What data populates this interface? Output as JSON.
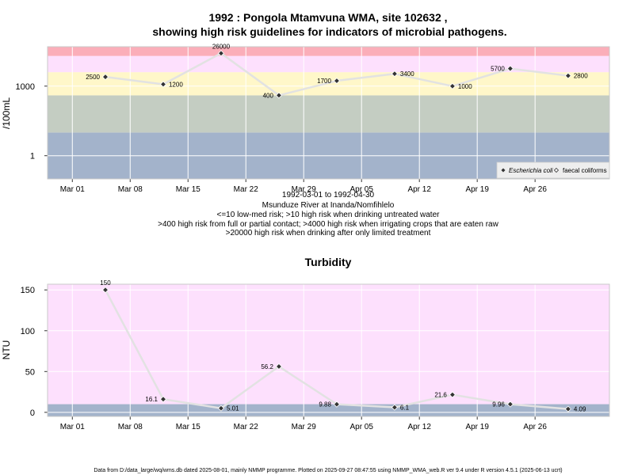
{
  "title_line1": "1992 : Pongola Mtamvuna WMA, site 102632 ,",
  "title_line2": "showing high risk guidelines for indicators of microbial pathogens.",
  "subtitle_lines": [
    "1992-03-01 to 1992-04-30",
    "Msunduze River at Inanda/Nomfihlelo",
    "<=10 low-med risk; >10 high risk when drinking untreated water",
    ">400 high risk from full or partial contact; >4000 high risk when irrigating crops that are eaten raw",
    ">20000 high risk when drinking after only limited treatment"
  ],
  "footer": "Data from D:/data_large/wq/wms.db dated 2025-08-01, mainly NMMP programme. Plotted on 2025-09-27 08:47:55 using NMMP_WMA_web.R ver 9.4 under R version 4.5.1 (2025-06-13 ucrt)",
  "colors": {
    "band_blue": "#a3b3cb",
    "band_grey": "#c4cdc2",
    "band_yellow": "#fff7c9",
    "band_pink": "#fde0fd",
    "band_red": "#fbaeb9",
    "line": "#e2e2e2",
    "marker": "#333333",
    "grid": "#ffffff"
  },
  "chart_data": [
    {
      "type": "line",
      "title": "",
      "ylabel": "/100mL",
      "yscale": "log10",
      "ylim": [
        0.1,
        50000
      ],
      "yticks": [
        1,
        1000
      ],
      "ytick_labels": [
        "1",
        "1000"
      ],
      "xlim": [
        "1992-02-27",
        "1992-05-05"
      ],
      "xticks": [
        "1992-03-01",
        "1992-03-08",
        "1992-03-15",
        "1992-03-22",
        "1992-03-29",
        "1992-04-05",
        "1992-04-12",
        "1992-04-19",
        "1992-04-26"
      ],
      "xtick_labels": [
        "Mar 01",
        "Mar 08",
        "Mar 15",
        "Mar 22",
        "Mar 29",
        "Apr 05",
        "Apr 12",
        "Apr 19",
        "Apr 26"
      ],
      "bands": [
        {
          "from": 0.1,
          "to": 10,
          "color": "#a3b3cb"
        },
        {
          "from": 10,
          "to": 400,
          "color": "#c4cdc2"
        },
        {
          "from": 400,
          "to": 4000,
          "color": "#fff7c9"
        },
        {
          "from": 4000,
          "to": 20000,
          "color": "#fde0fd"
        },
        {
          "from": 20000,
          "to": 50000,
          "color": "#fbaeb9"
        }
      ],
      "legend": {
        "position": "bottom-right",
        "entries": [
          {
            "label": "Escherichia coli",
            "marker": "filled-diamond"
          },
          {
            "label": "faecal coliforms",
            "marker": "open-diamond"
          }
        ]
      },
      "series": [
        {
          "name": "Escherichia coli",
          "points": [
            {
              "x": "1992-03-05",
              "y": 2500,
              "label": "2500",
              "label_side": "left"
            },
            {
              "x": "1992-03-12",
              "y": 1200,
              "label": "1200",
              "label_side": "right"
            },
            {
              "x": "1992-03-19",
              "y": 26000,
              "label": "26000",
              "label_side": "above"
            },
            {
              "x": "1992-03-26",
              "y": 400,
              "label": "400",
              "label_side": "left"
            },
            {
              "x": "1992-04-02",
              "y": 1700,
              "label": "1700",
              "label_side": "left"
            },
            {
              "x": "1992-04-09",
              "y": 3400,
              "label": "3400",
              "label_side": "right"
            },
            {
              "x": "1992-04-16",
              "y": 1000,
              "label": "1000",
              "label_side": "right"
            },
            {
              "x": "1992-04-23",
              "y": 5700,
              "label": "5700",
              "label_side": "left"
            },
            {
              "x": "1992-04-30",
              "y": 2800,
              "label": "2800",
              "label_side": "right"
            }
          ]
        }
      ]
    },
    {
      "type": "line",
      "title": "Turbidity",
      "ylabel": "NTU",
      "yscale": "linear",
      "ylim": [
        -5,
        157
      ],
      "yticks": [
        0,
        50,
        100,
        150
      ],
      "ytick_labels": [
        "0",
        "50",
        "100",
        "150"
      ],
      "xlim": [
        "1992-02-27",
        "1992-05-05"
      ],
      "xticks": [
        "1992-03-01",
        "1992-03-08",
        "1992-03-15",
        "1992-03-22",
        "1992-03-29",
        "1992-04-05",
        "1992-04-12",
        "1992-04-19",
        "1992-04-26"
      ],
      "xtick_labels": [
        "Mar 01",
        "Mar 08",
        "Mar 15",
        "Mar 22",
        "Mar 29",
        "Apr 05",
        "Apr 12",
        "Apr 19",
        "Apr 26"
      ],
      "bands": [
        {
          "from": -5,
          "to": 10,
          "color": "#a3b3cb"
        },
        {
          "from": 10,
          "to": 157,
          "color": "#fde0fd"
        }
      ],
      "series": [
        {
          "name": "Turbidity",
          "points": [
            {
              "x": "1992-03-05",
              "y": 150,
              "label": "150",
              "label_side": "above"
            },
            {
              "x": "1992-03-12",
              "y": 16.1,
              "label": "16.1",
              "label_side": "left"
            },
            {
              "x": "1992-03-19",
              "y": 5.01,
              "label": "5.01",
              "label_side": "right"
            },
            {
              "x": "1992-03-26",
              "y": 56.2,
              "label": "56.2",
              "label_side": "left"
            },
            {
              "x": "1992-04-02",
              "y": 9.88,
              "label": "9.88",
              "label_side": "left"
            },
            {
              "x": "1992-04-09",
              "y": 6.1,
              "label": "6.1",
              "label_side": "right"
            },
            {
              "x": "1992-04-16",
              "y": 21.6,
              "label": "21.6",
              "label_side": "left"
            },
            {
              "x": "1992-04-23",
              "y": 9.96,
              "label": "9.96",
              "label_side": "left"
            },
            {
              "x": "1992-04-30",
              "y": 4.09,
              "label": "4.09",
              "label_side": "right"
            }
          ]
        }
      ]
    }
  ]
}
